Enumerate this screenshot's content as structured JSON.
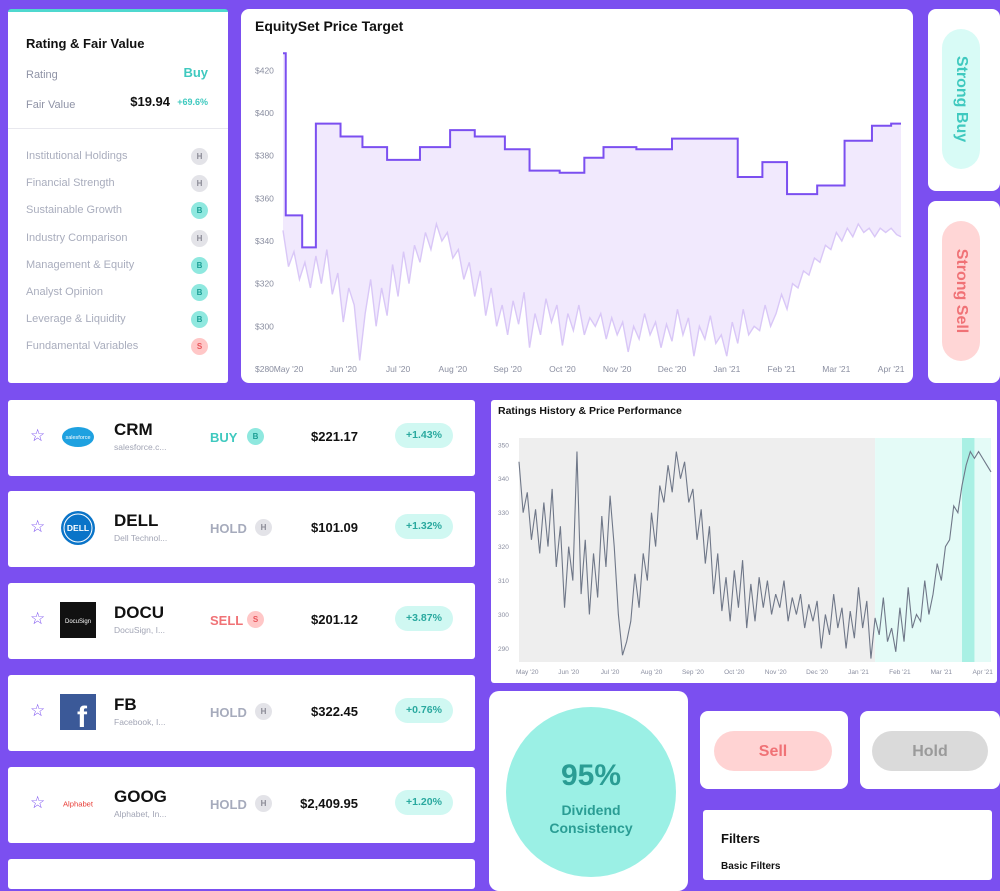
{
  "rating_card": {
    "title": "Rating & Fair Value",
    "rating_label": "Rating",
    "rating_value": "Buy",
    "fair_value_label": "Fair Value",
    "fair_value": "$19.94",
    "fair_value_change": "+69.6%",
    "factors": [
      {
        "label": "Institutional Holdings",
        "badge": "H"
      },
      {
        "label": "Financial Strength",
        "badge": "H"
      },
      {
        "label": "Sustainable Growth",
        "badge": "B"
      },
      {
        "label": "Industry Comparison",
        "badge": "H"
      },
      {
        "label": "Management & Equity",
        "badge": "B"
      },
      {
        "label": "Analyst Opinion",
        "badge": "B"
      },
      {
        "label": "Leverage & Liquidity",
        "badge": "B"
      },
      {
        "label": "Fundamental Variables",
        "badge": "S"
      }
    ]
  },
  "price_target_chart": {
    "title": "EquitySet Price Target"
  },
  "ratings_history_chart": {
    "title": "Ratings History & Price Performance"
  },
  "chart_data": [
    {
      "type": "line",
      "title": "EquitySet Price Target",
      "categories": [
        "May '20",
        "Jun '20",
        "Jul '20",
        "Aug '20",
        "Sep '20",
        "Oct '20",
        "Nov '20",
        "Dec '20",
        "Jan '21",
        "Feb '21",
        "Mar '21",
        "Apr '21"
      ],
      "y_ticks": [
        "$280",
        "$300",
        "$320",
        "$340",
        "$360",
        "$380",
        "$400",
        "$420"
      ],
      "ylim": [
        280,
        430
      ],
      "series": [
        {
          "name": "Price Target",
          "x": [
            0,
            0.05,
            0.05,
            0.35,
            0.35,
            0.6,
            0.6,
            1.05,
            1.05,
            1.45,
            1.45,
            1.9,
            1.9,
            2.5,
            2.5,
            3.05,
            3.05,
            3.5,
            3.5,
            4.05,
            4.05,
            4.5,
            4.5,
            5.05,
            5.05,
            5.5,
            5.5,
            5.85,
            5.85,
            6.45,
            6.45,
            7.1,
            7.1,
            7.55,
            7.55,
            8.3,
            8.3,
            8.75,
            8.75,
            9.2,
            9.2,
            9.75,
            9.75,
            10.25,
            10.25,
            10.75,
            10.75,
            11.1,
            11.1,
            11.28
          ],
          "values": [
            428,
            428,
            352,
            352,
            337,
            337,
            395,
            395,
            389,
            389,
            384,
            384,
            378,
            378,
            384,
            384,
            392,
            392,
            389,
            389,
            383,
            383,
            373,
            373,
            372,
            372,
            379,
            379,
            384,
            384,
            383,
            383,
            388,
            388,
            388,
            388,
            370,
            370,
            377,
            377,
            362,
            362,
            366,
            366,
            387,
            387,
            394,
            394,
            395,
            395
          ]
        },
        {
          "name": "Price",
          "x": [
            0,
            0.1,
            0.2,
            0.3,
            0.4,
            0.5,
            0.6,
            0.7,
            0.8,
            0.9,
            1.0,
            1.1,
            1.2,
            1.3,
            1.4,
            1.5,
            1.6,
            1.7,
            1.8,
            1.9,
            2.0,
            2.1,
            2.2,
            2.3,
            2.4,
            2.5,
            2.6,
            2.7,
            2.8,
            2.9,
            3.0,
            3.1,
            3.2,
            3.3,
            3.4,
            3.5,
            3.6,
            3.7,
            3.8,
            3.9,
            4.0,
            4.1,
            4.2,
            4.3,
            4.4,
            4.5,
            4.6,
            4.7,
            4.8,
            4.9,
            5.0,
            5.1,
            5.2,
            5.3,
            5.4,
            5.5,
            5.6,
            5.7,
            5.8,
            5.9,
            6.0,
            6.1,
            6.2,
            6.3,
            6.4,
            6.5,
            6.6,
            6.7,
            6.8,
            6.9,
            7.0,
            7.1,
            7.2,
            7.3,
            7.4,
            7.5,
            7.6,
            7.7,
            7.8,
            7.9,
            8.0,
            8.1,
            8.2,
            8.3,
            8.4,
            8.5,
            8.6,
            8.7,
            8.8,
            8.9,
            9.0,
            9.1,
            9.2,
            9.3,
            9.4,
            9.5,
            9.6,
            9.7,
            9.8,
            9.9,
            10.0,
            10.1,
            10.2,
            10.3,
            10.4,
            10.5,
            10.6,
            10.7,
            10.8,
            10.9,
            11.0,
            11.1,
            11.2,
            11.28
          ],
          "values": [
            345,
            328,
            335,
            322,
            330,
            318,
            333,
            320,
            336,
            315,
            325,
            302,
            318,
            310,
            284,
            306,
            322,
            300,
            318,
            305,
            329,
            314,
            335,
            320,
            338,
            330,
            344,
            336,
            348,
            340,
            344,
            332,
            336,
            322,
            330,
            314,
            326,
            305,
            318,
            300,
            310,
            296,
            312,
            301,
            316,
            290,
            306,
            296,
            313,
            302,
            310,
            291,
            306,
            298,
            310,
            296,
            304,
            300,
            306,
            294,
            304,
            296,
            302,
            288,
            300,
            294,
            306,
            296,
            302,
            290,
            301,
            293,
            308,
            296,
            304,
            286,
            300,
            294,
            305,
            292,
            296,
            286,
            302,
            292,
            308,
            296,
            300,
            298,
            310,
            300,
            306,
            315,
            308,
            320,
            318,
            326,
            324,
            332,
            330,
            338,
            336,
            344,
            340,
            346,
            342,
            348,
            344,
            346,
            342,
            346,
            344,
            346,
            343,
            342
          ]
        }
      ]
    },
    {
      "type": "line",
      "title": "Ratings History & Price Performance",
      "categories": [
        "May '20",
        "Jun '20",
        "Jul '20",
        "Aug '20",
        "Sep '20",
        "Oct '20",
        "Nov '20",
        "Dec '20",
        "Jan '21",
        "Feb '21",
        "Mar '21",
        "Apr '21"
      ],
      "y_ticks": [
        "290",
        "300",
        "310",
        "320",
        "330",
        "340",
        "350"
      ],
      "ylim": [
        286,
        352
      ],
      "rating_zones": [
        {
          "from": 8.6,
          "to": 11.4,
          "rating": "Buy"
        },
        {
          "from": 10.7,
          "to": 11.0,
          "rating": "Strong Buy"
        }
      ],
      "series": [
        {
          "name": "Price",
          "x": [
            0,
            0.1,
            0.2,
            0.3,
            0.4,
            0.5,
            0.6,
            0.7,
            0.8,
            0.9,
            1.0,
            1.1,
            1.2,
            1.3,
            1.4,
            1.5,
            1.6,
            1.7,
            1.8,
            1.9,
            2.0,
            2.1,
            2.2,
            2.3,
            2.4,
            2.5,
            2.6,
            2.7,
            2.8,
            2.9,
            3.0,
            3.1,
            3.2,
            3.3,
            3.4,
            3.5,
            3.6,
            3.7,
            3.8,
            3.9,
            4.0,
            4.1,
            4.2,
            4.3,
            4.4,
            4.5,
            4.6,
            4.7,
            4.8,
            4.9,
            5.0,
            5.1,
            5.2,
            5.3,
            5.4,
            5.5,
            5.6,
            5.7,
            5.8,
            5.9,
            6.0,
            6.1,
            6.2,
            6.3,
            6.4,
            6.5,
            6.6,
            6.7,
            6.8,
            6.9,
            7.0,
            7.1,
            7.2,
            7.3,
            7.4,
            7.5,
            7.6,
            7.7,
            7.8,
            7.9,
            8.0,
            8.1,
            8.2,
            8.3,
            8.4,
            8.5,
            8.6,
            8.7,
            8.8,
            8.9,
            9.0,
            9.1,
            9.2,
            9.3,
            9.4,
            9.5,
            9.6,
            9.7,
            9.8,
            9.9,
            10.0,
            10.1,
            10.2,
            10.3,
            10.4,
            10.5,
            10.6,
            10.7,
            10.8,
            10.9,
            11.0,
            11.1,
            11.2,
            11.3,
            11.4
          ],
          "values": [
            345,
            330,
            336,
            322,
            331,
            318,
            333,
            320,
            337,
            314,
            326,
            302,
            320,
            310,
            348,
            306,
            322,
            300,
            318,
            305,
            329,
            314,
            335,
            320,
            300,
            288,
            292,
            298,
            312,
            302,
            318,
            310,
            330,
            320,
            338,
            333,
            344,
            336,
            348,
            340,
            345,
            333,
            337,
            322,
            331,
            315,
            326,
            306,
            318,
            301,
            311,
            298,
            313,
            302,
            316,
            296,
            309,
            298,
            311,
            302,
            310,
            300,
            306,
            302,
            310,
            298,
            305,
            300,
            306,
            296,
            303,
            298,
            304,
            290,
            300,
            294,
            306,
            296,
            302,
            290,
            301,
            293,
            308,
            296,
            304,
            287,
            299,
            294,
            305,
            292,
            296,
            289,
            302,
            292,
            308,
            296,
            300,
            298,
            310,
            300,
            306,
            315,
            310,
            320,
            322,
            332,
            330,
            338,
            344,
            348,
            346,
            348,
            346,
            344,
            342
          ]
        }
      ]
    }
  ],
  "side_buttons": {
    "strong_buy": "Strong Buy",
    "strong_sell": "Strong Sell"
  },
  "stocks": [
    {
      "ticker": "CRM",
      "company": "salesforce.c...",
      "rating": "BUY",
      "badge": "B",
      "price": "$221.17",
      "change": "+1.43%",
      "logo_text": "salesforce",
      "logo_color": "#1ea1e0"
    },
    {
      "ticker": "DELL",
      "company": "Dell Technol...",
      "rating": "HOLD",
      "badge": "H",
      "price": "$101.09",
      "change": "+1.32%",
      "logo_text": "DELL",
      "logo_color": "#0a74c8"
    },
    {
      "ticker": "DOCU",
      "company": "DocuSign, I...",
      "rating": "SELL",
      "badge": "S",
      "price": "$201.12",
      "change": "+3.87%",
      "logo_text": "DocuSign",
      "logo_color": "#111111"
    },
    {
      "ticker": "FB",
      "company": "Facebook, I...",
      "rating": "HOLD",
      "badge": "H",
      "price": "$322.45",
      "change": "+0.76%",
      "logo_text": "f",
      "logo_color": "#3b5998"
    },
    {
      "ticker": "GOOG",
      "company": "Alphabet, In...",
      "rating": "HOLD",
      "badge": "H",
      "price": "$2,409.95",
      "change": "+1.20%",
      "logo_text": "Alphabet",
      "logo_color": "#e8403a"
    }
  ],
  "dividend": {
    "percent": "95%",
    "label": "Dividend Consistency"
  },
  "buttons": {
    "sell": "Sell",
    "hold": "Hold"
  },
  "filters": {
    "title": "Filters",
    "subtitle": "Basic Filters"
  },
  "colors": {
    "background": "#7b4ff0",
    "accent_teal": "#3fc9bf",
    "accent_red": "#f07276",
    "chart_purple": "#7b4ff0"
  }
}
